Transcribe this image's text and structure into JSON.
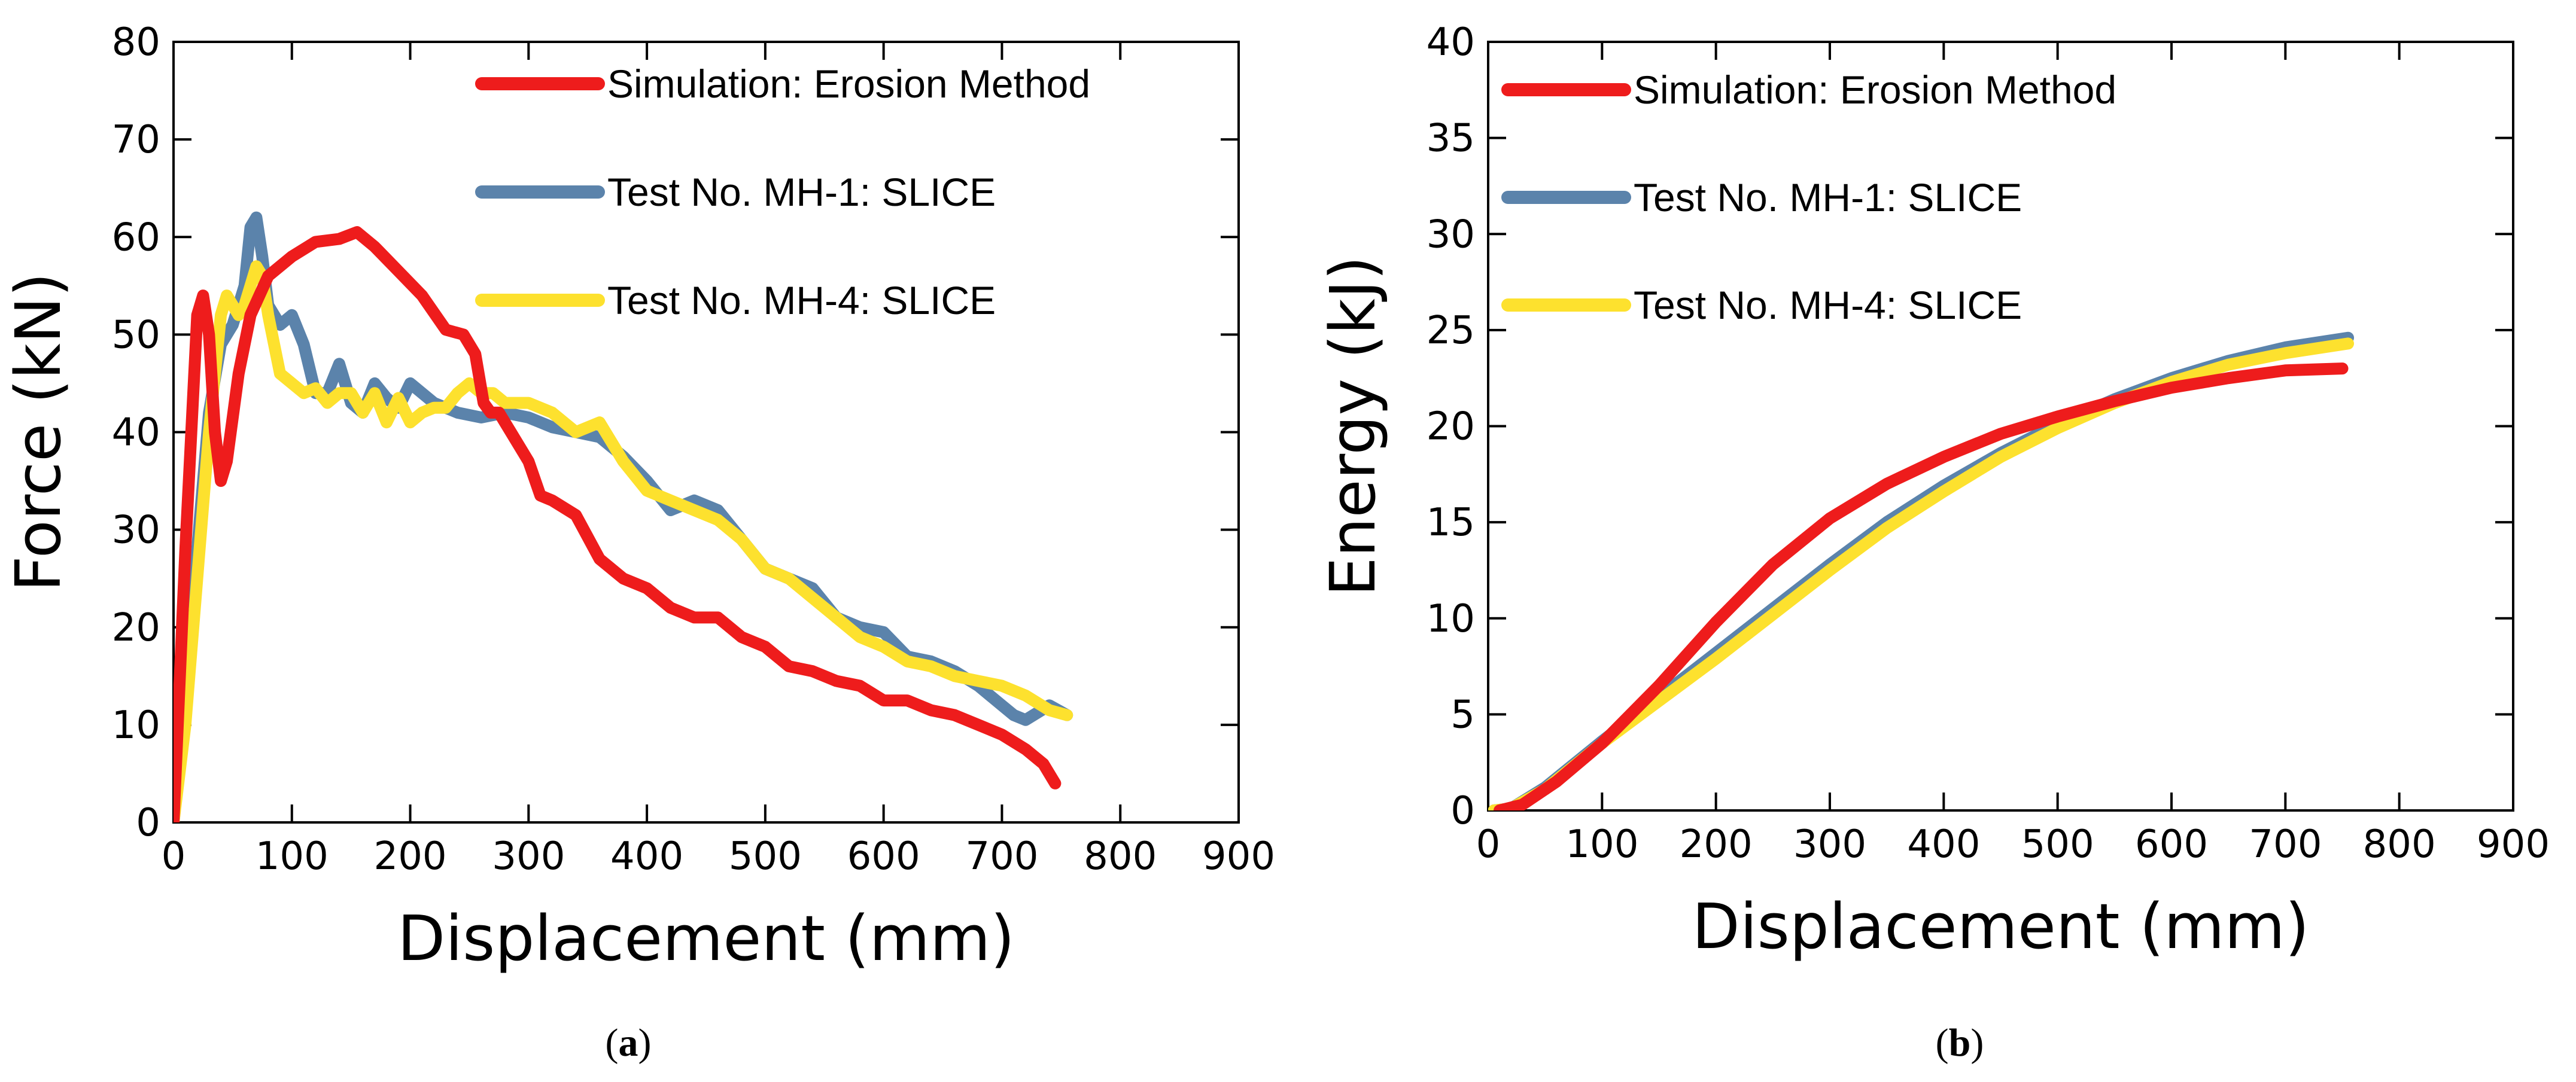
{
  "panels": [
    {
      "caption": {
        "open": "(",
        "letter": "a",
        "close": ")"
      },
      "chart_data": {
        "type": "line",
        "title": "",
        "xlabel": "Displacement (mm)",
        "ylabel": "Force (kN)",
        "xlim": [
          0,
          900
        ],
        "ylim": [
          0,
          80
        ],
        "xticks": [
          0,
          100,
          200,
          300,
          400,
          500,
          600,
          700,
          800,
          900
        ],
        "yticks": [
          0,
          10,
          20,
          30,
          40,
          50,
          60,
          70,
          80
        ],
        "grid": false,
        "legend": "top-right",
        "series": [
          {
            "name": "Simulation: Erosion Method",
            "color": "#ee1c1c",
            "x": [
              0,
              10,
              20,
              25,
              30,
              35,
              40,
              45,
              55,
              65,
              80,
              100,
              120,
              140,
              155,
              170,
              190,
              210,
              230,
              245,
              255,
              262,
              268,
              275,
              285,
              300,
              310,
              320,
              340,
              360,
              380,
              400,
              420,
              440,
              460,
              480,
              500,
              520,
              540,
              560,
              580,
              600,
              620,
              640,
              660,
              680,
              700,
              720,
              735,
              745
            ],
            "y": [
              0,
              28,
              52,
              54,
              50,
              40,
              35,
              37,
              46,
              52,
              56,
              58,
              59.5,
              59.8,
              60.5,
              59,
              56.5,
              54,
              50.5,
              50,
              48,
              43,
              42,
              42,
              40,
              37,
              33.5,
              33,
              31.5,
              27,
              25,
              24,
              22,
              21,
              21,
              19,
              18,
              16,
              15.5,
              14.5,
              14,
              12.5,
              12.5,
              11.5,
              11,
              10,
              9,
              7.5,
              6,
              4
            ]
          },
          {
            "name": "Test No. MH-1: SLICE",
            "color": "#5b83ab",
            "x": [
              0,
              10,
              20,
              30,
              40,
              50,
              60,
              65,
              70,
              75,
              80,
              90,
              100,
              110,
              120,
              130,
              140,
              150,
              160,
              170,
              180,
              190,
              200,
              220,
              240,
              260,
              280,
              300,
              320,
              340,
              360,
              380,
              400,
              420,
              440,
              460,
              480,
              500,
              520,
              540,
              560,
              580,
              600,
              620,
              640,
              660,
              680,
              700,
              710,
              720,
              740,
              755
            ],
            "y": [
              0,
              12,
              28,
              42,
              49,
              51,
              55,
              61,
              62,
              58,
              53,
              51,
              52,
              49,
              44,
              44,
              47,
              43,
              42,
              45,
              43.5,
              42.5,
              45,
              43,
              42,
              41.5,
              42,
              41.5,
              40.5,
              40,
              39.5,
              37.5,
              35,
              32,
              33,
              32,
              29,
              26,
              25,
              24,
              21,
              20,
              19.5,
              17,
              16.5,
              15.5,
              14,
              12,
              11,
              10.5,
              12,
              11
            ]
          },
          {
            "name": "Test No. MH-4: SLICE",
            "color": "#fde12e",
            "x": [
              0,
              10,
              20,
              30,
              40,
              45,
              50,
              55,
              60,
              65,
              70,
              75,
              80,
              90,
              100,
              110,
              120,
              130,
              140,
              150,
              160,
              170,
              180,
              190,
              200,
              210,
              220,
              230,
              240,
              250,
              260,
              270,
              280,
              300,
              320,
              340,
              360,
              380,
              400,
              420,
              440,
              460,
              480,
              500,
              520,
              540,
              560,
              580,
              600,
              620,
              640,
              660,
              680,
              700,
              720,
              740,
              755
            ],
            "y": [
              0,
              10,
              25,
              40,
              52,
              54,
              53,
              52,
              53,
              55,
              57,
              56,
              52,
              46,
              45,
              44,
              44.5,
              43,
              44,
              44,
              42,
              44,
              41,
              43.5,
              41,
              42,
              42.5,
              42.5,
              44,
              45,
              44,
              44,
              43,
              43,
              42,
              40,
              41,
              37,
              34,
              33,
              32,
              31,
              29,
              26,
              25,
              23,
              21,
              19,
              18,
              16.5,
              16,
              15,
              14.5,
              14,
              13,
              11.5,
              11
            ]
          }
        ]
      }
    },
    {
      "caption": {
        "open": "(",
        "letter": "b",
        "close": ")"
      },
      "chart_data": {
        "type": "line",
        "title": "",
        "xlabel": "Displacement (mm)",
        "ylabel": "Energy (kJ)",
        "xlim": [
          0,
          900
        ],
        "ylim": [
          0,
          40
        ],
        "xticks": [
          0,
          100,
          200,
          300,
          400,
          500,
          600,
          700,
          800,
          900
        ],
        "yticks": [
          0,
          5,
          10,
          15,
          20,
          25,
          30,
          35,
          40
        ],
        "grid": false,
        "legend": "top-left",
        "series": [
          {
            "name": "Simulation: Erosion Method",
            "color": "#ee1c1c",
            "x": [
              10,
              30,
              60,
              100,
              150,
              200,
              250,
              300,
              350,
              400,
              450,
              500,
              550,
              600,
              650,
              700,
              750
            ],
            "y": [
              0,
              0.3,
              1.5,
              3.5,
              6.5,
              9.8,
              12.8,
              15.2,
              17.0,
              18.4,
              19.6,
              20.5,
              21.3,
              22.0,
              22.5,
              22.9,
              23.0
            ]
          },
          {
            "name": "Test No. MH-1: SLICE",
            "color": "#5b83ab",
            "x": [
              5,
              20,
              50,
              100,
              150,
              200,
              250,
              300,
              350,
              400,
              450,
              500,
              550,
              600,
              650,
              700,
              755
            ],
            "y": [
              0,
              0.1,
              1.2,
              3.6,
              5.9,
              8.2,
              10.5,
              12.8,
              15.0,
              16.9,
              18.6,
              20.1,
              21.4,
              22.5,
              23.4,
              24.1,
              24.6
            ]
          },
          {
            "name": "Test No. MH-4: SLICE",
            "color": "#fde12e",
            "x": [
              5,
              20,
              50,
              100,
              150,
              200,
              250,
              300,
              350,
              400,
              450,
              500,
              550,
              600,
              650,
              700,
              755
            ],
            "y": [
              0,
              0.1,
              1.1,
              3.5,
              5.7,
              7.9,
              10.2,
              12.5,
              14.7,
              16.6,
              18.4,
              19.9,
              21.2,
              22.3,
              23.2,
              23.8,
              24.3
            ]
          }
        ]
      }
    }
  ]
}
